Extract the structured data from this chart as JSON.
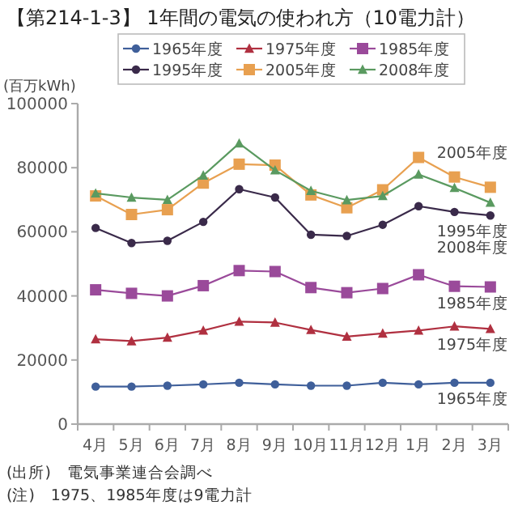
{
  "chart_data": {
    "type": "line",
    "title": "【第214-1-3】 1年間の電気の使われ方（10電力計）",
    "ylabel": "(百万kWh)",
    "categories": [
      "4月",
      "5月",
      "6月",
      "7月",
      "8月",
      "9月",
      "10月",
      "11月",
      "12月",
      "1月",
      "2月",
      "3月"
    ],
    "series": [
      {
        "name": "1965年度",
        "color": "#3f5f9a",
        "marker": "circle",
        "values": [
          11700,
          11700,
          12000,
          12400,
          12900,
          12400,
          12000,
          12000,
          12900,
          12400,
          12900,
          12900
        ]
      },
      {
        "name": "1975年度",
        "color": "#b03040",
        "marker": "triangle",
        "values": [
          26500,
          25900,
          27000,
          29200,
          32000,
          31700,
          29400,
          27300,
          28300,
          29200,
          30500,
          29700
        ]
      },
      {
        "name": "1985年度",
        "color": "#9a4a9a",
        "marker": "square",
        "values": [
          41900,
          40800,
          40000,
          43200,
          47900,
          47600,
          42600,
          41000,
          42300,
          46600,
          43000,
          42800
        ]
      },
      {
        "name": "1995年度",
        "color": "#3a2a4a",
        "marker": "circle",
        "values": [
          61200,
          56500,
          57200,
          63100,
          73300,
          70700,
          59100,
          58700,
          62200,
          68000,
          66200,
          65100
        ]
      },
      {
        "name": "2005年度",
        "color": "#e8a050",
        "marker": "square",
        "values": [
          71200,
          65400,
          66900,
          75200,
          81100,
          80800,
          71500,
          67500,
          73100,
          83200,
          77100,
          73900
        ]
      },
      {
        "name": "2008年度",
        "color": "#5a9a60",
        "marker": "triangle",
        "values": [
          72000,
          70700,
          70000,
          77600,
          87600,
          79200,
          72800,
          69900,
          71200,
          77900,
          73700,
          69100
        ]
      }
    ],
    "ylim": [
      0,
      100000
    ],
    "yticks": [
      0,
      20000,
      40000,
      60000,
      80000,
      100000
    ],
    "grid": false,
    "legend": "top",
    "line_style": "solid",
    "annotations": [
      "(出所)　電気事業連合会調べ",
      "(注)　1975、1985年度は9電力計"
    ]
  }
}
